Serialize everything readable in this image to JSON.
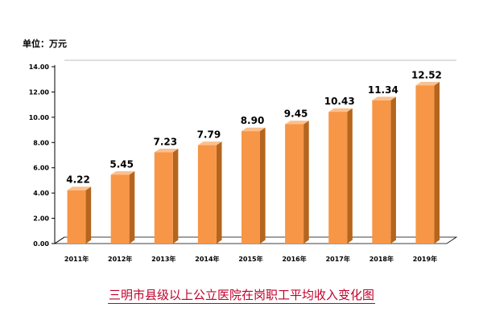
{
  "chart_data": {
    "type": "bar",
    "unit_label": "单位：万元",
    "categories": [
      "2011年",
      "2012年",
      "2013年",
      "2014年",
      "2015年",
      "2016年",
      "2017年",
      "2018年",
      "2019年"
    ],
    "values": [
      4.22,
      5.45,
      7.23,
      7.79,
      8.9,
      9.45,
      10.43,
      11.34,
      12.52
    ],
    "value_labels": [
      "4.22",
      "5.45",
      "7.23",
      "7.79",
      "8.90",
      "9.45",
      "10.43",
      "11.34",
      "12.52"
    ],
    "yticks": [
      "0.00",
      "2.00",
      "4.00",
      "6.00",
      "8.00",
      "10.00",
      "12.00",
      "14.00"
    ],
    "ylim": [
      0,
      14
    ],
    "caption": "三明市县级以上公立医院在岗职工平均收入变化图",
    "colors": {
      "bar_front": "#f79646",
      "bar_side": "#b5651d",
      "bar_top": "#fbc08e",
      "caption": "#c0002a"
    }
  }
}
